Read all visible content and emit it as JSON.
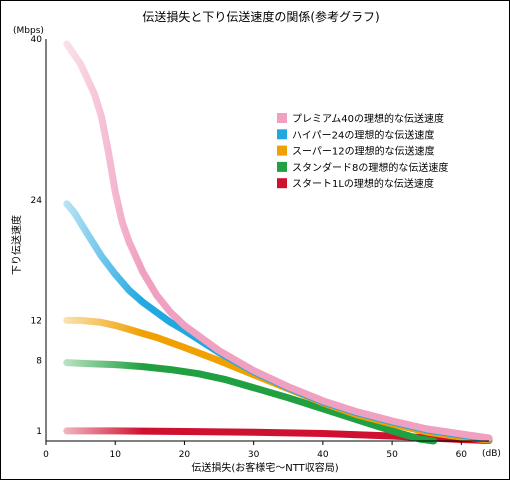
{
  "chart_data": {
    "type": "line",
    "title": "伝送損失と下り伝送速度の関係(参考グラフ)",
    "xlabel": "伝送損失(お客様宅〜NTT収容局)",
    "ylabel": "下り伝送速度",
    "x_unit": "(dB)",
    "y_unit": "(Mbps)",
    "xlim": [
      0,
      64
    ],
    "ylim": [
      0,
      40
    ],
    "x_ticks": [
      0,
      10,
      20,
      30,
      40,
      50,
      60
    ],
    "y_ticks": [
      1,
      8,
      12,
      24,
      40
    ],
    "grid": false,
    "legend_position": "right",
    "series": [
      {
        "name": "プレミアム40の理想的な伝送速度",
        "color": "#f0a0c0",
        "points": [
          [
            3,
            39.5
          ],
          [
            5,
            37.5
          ],
          [
            7,
            34.5
          ],
          [
            8,
            32.3
          ],
          [
            9,
            28.8
          ],
          [
            10,
            24.8
          ],
          [
            11,
            21.8
          ],
          [
            12,
            19.8
          ],
          [
            14,
            16.8
          ],
          [
            16,
            14.5
          ],
          [
            18,
            12.8
          ],
          [
            20,
            11.5
          ],
          [
            25,
            9.0
          ],
          [
            30,
            7.0
          ],
          [
            35,
            5.4
          ],
          [
            40,
            4.0
          ],
          [
            45,
            2.9
          ],
          [
            50,
            2.0
          ],
          [
            55,
            1.2
          ],
          [
            60,
            0.7
          ],
          [
            64,
            0.3
          ]
        ]
      },
      {
        "name": "ハイパー24の理想的な伝送速度",
        "color": "#20a8e0",
        "points": [
          [
            3,
            23.6
          ],
          [
            4,
            22.8
          ],
          [
            6,
            20.6
          ],
          [
            8,
            18.4
          ],
          [
            10,
            16.6
          ],
          [
            12,
            15.0
          ],
          [
            14,
            13.8
          ],
          [
            16,
            12.8
          ],
          [
            18,
            11.8
          ],
          [
            20,
            11.0
          ],
          [
            25,
            8.8
          ],
          [
            30,
            6.9
          ],
          [
            35,
            5.3
          ],
          [
            40,
            3.9
          ],
          [
            45,
            2.8
          ],
          [
            50,
            1.9
          ],
          [
            55,
            1.1
          ],
          [
            60,
            0.6
          ],
          [
            64,
            0.2
          ]
        ]
      },
      {
        "name": "スーパー12の理想的な伝送速度",
        "color": "#f0a000",
        "points": [
          [
            3,
            12.0
          ],
          [
            5,
            12.0
          ],
          [
            8,
            11.8
          ],
          [
            10,
            11.5
          ],
          [
            12,
            11.1
          ],
          [
            14,
            10.7
          ],
          [
            16,
            10.3
          ],
          [
            18,
            9.8
          ],
          [
            20,
            9.3
          ],
          [
            25,
            8.0
          ],
          [
            30,
            6.6
          ],
          [
            35,
            5.2
          ],
          [
            40,
            3.8
          ],
          [
            45,
            2.6
          ],
          [
            50,
            1.7
          ],
          [
            55,
            0.9
          ],
          [
            60,
            0.4
          ],
          [
            64,
            0.1
          ]
        ]
      },
      {
        "name": "スタンダード8の理想的な伝送速度",
        "color": "#20a040",
        "points": [
          [
            3,
            7.8
          ],
          [
            6,
            7.7
          ],
          [
            10,
            7.6
          ],
          [
            14,
            7.4
          ],
          [
            18,
            7.1
          ],
          [
            22,
            6.7
          ],
          [
            26,
            6.1
          ],
          [
            30,
            5.3
          ],
          [
            35,
            4.3
          ],
          [
            40,
            3.2
          ],
          [
            45,
            2.1
          ],
          [
            50,
            1.0
          ],
          [
            54,
            0.2
          ],
          [
            56,
            0.0
          ]
        ]
      },
      {
        "name": "スタート1Lの理想的な伝送速度",
        "color": "#d01030",
        "points": [
          [
            3,
            1.0
          ],
          [
            10,
            1.0
          ],
          [
            20,
            0.95
          ],
          [
            30,
            0.88
          ],
          [
            40,
            0.75
          ],
          [
            50,
            0.5
          ],
          [
            55,
            0.32
          ],
          [
            60,
            0.15
          ],
          [
            64,
            0.05
          ]
        ]
      }
    ]
  }
}
